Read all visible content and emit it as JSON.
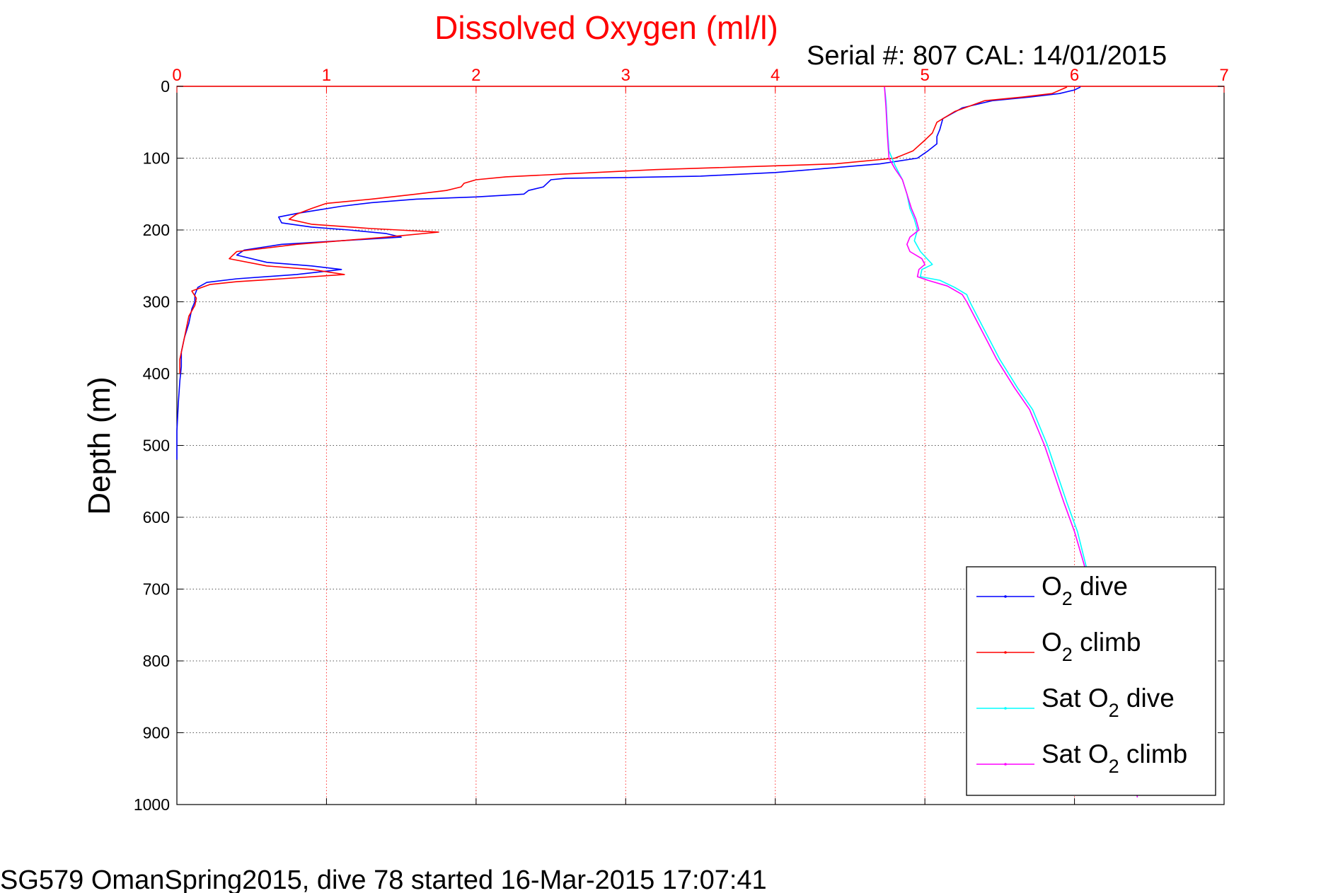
{
  "chart_data": {
    "type": "line",
    "title": "Dissolved Oxygen (ml/l)",
    "subtitle": "Serial #: 807  CAL: 14/01/2015",
    "ylabel": "Depth (m)",
    "footer": "SG579 OmanSpring2015, dive 78 started 16-Mar-2015 17:07:41",
    "xlim": [
      0,
      7
    ],
    "ylim": [
      0,
      1000
    ],
    "y_reversed": true,
    "x_axis_position": "top",
    "x_ticks": [
      0,
      1,
      2,
      3,
      4,
      5,
      6,
      7
    ],
    "y_ticks": [
      0,
      100,
      200,
      300,
      400,
      500,
      600,
      700,
      800,
      900,
      1000
    ],
    "grid": true,
    "legend_position": "bottom-right",
    "legend": {
      "o2_dive": [
        "O",
        "2",
        " dive"
      ],
      "o2_climb": [
        "O",
        "2",
        " climb"
      ],
      "sat_dive": [
        "Sat O",
        "2",
        " dive"
      ],
      "sat_climb": [
        "Sat O",
        "2",
        " climb"
      ]
    },
    "colors": {
      "title": "#ff0000",
      "o2_dive": "#0000ff",
      "o2_climb": "#ff0000",
      "sat_dive": "#00ffff",
      "sat_climb": "#ff00ff"
    },
    "series": [
      {
        "key": "o2_dive",
        "points": [
          [
            6.04,
            1
          ],
          [
            6.0,
            5
          ],
          [
            5.9,
            10
          ],
          [
            5.7,
            15
          ],
          [
            5.45,
            20
          ],
          [
            5.25,
            30
          ],
          [
            5.12,
            45
          ],
          [
            5.1,
            60
          ],
          [
            5.08,
            70
          ],
          [
            5.08,
            80
          ],
          [
            5.02,
            90
          ],
          [
            4.95,
            100
          ],
          [
            4.7,
            108
          ],
          [
            4.3,
            115
          ],
          [
            4.0,
            120
          ],
          [
            3.5,
            125
          ],
          [
            3.0,
            127
          ],
          [
            2.6,
            128
          ],
          [
            2.5,
            130
          ],
          [
            2.45,
            140
          ],
          [
            2.35,
            145
          ],
          [
            2.32,
            150
          ],
          [
            2.0,
            154
          ],
          [
            1.6,
            157
          ],
          [
            1.3,
            162
          ],
          [
            1.1,
            167
          ],
          [
            0.95,
            172
          ],
          [
            0.8,
            177
          ],
          [
            0.68,
            182
          ],
          [
            0.7,
            190
          ],
          [
            0.9,
            196
          ],
          [
            1.15,
            200
          ],
          [
            1.4,
            205
          ],
          [
            1.5,
            210
          ],
          [
            1.1,
            215
          ],
          [
            0.7,
            220
          ],
          [
            0.45,
            228
          ],
          [
            0.4,
            235
          ],
          [
            0.6,
            245
          ],
          [
            0.9,
            250
          ],
          [
            1.1,
            255
          ],
          [
            0.8,
            262
          ],
          [
            0.4,
            268
          ],
          [
            0.2,
            273
          ],
          [
            0.14,
            280
          ],
          [
            0.12,
            290
          ],
          [
            0.12,
            300
          ],
          [
            0.1,
            310
          ],
          [
            0.08,
            330
          ],
          [
            0.05,
            350
          ],
          [
            0.03,
            370
          ],
          [
            0.03,
            390
          ],
          [
            0.02,
            410
          ],
          [
            0.01,
            440
          ],
          [
            0.0,
            480
          ],
          [
            0.0,
            520
          ]
        ]
      },
      {
        "key": "o2_climb",
        "points": [
          [
            5.95,
            1
          ],
          [
            5.85,
            10
          ],
          [
            5.65,
            15
          ],
          [
            5.4,
            20
          ],
          [
            5.2,
            35
          ],
          [
            5.08,
            50
          ],
          [
            5.05,
            65
          ],
          [
            5.0,
            75
          ],
          [
            4.92,
            90
          ],
          [
            4.8,
            100
          ],
          [
            4.4,
            108
          ],
          [
            3.8,
            112
          ],
          [
            3.2,
            116
          ],
          [
            2.6,
            122
          ],
          [
            2.2,
            126
          ],
          [
            2.0,
            130
          ],
          [
            1.92,
            135
          ],
          [
            1.9,
            140
          ],
          [
            1.8,
            145
          ],
          [
            1.6,
            150
          ],
          [
            1.3,
            157
          ],
          [
            1.0,
            163
          ],
          [
            0.9,
            170
          ],
          [
            0.8,
            178
          ],
          [
            0.75,
            185
          ],
          [
            0.9,
            192
          ],
          [
            1.3,
            198
          ],
          [
            1.75,
            203
          ],
          [
            1.4,
            210
          ],
          [
            0.8,
            220
          ],
          [
            0.4,
            230
          ],
          [
            0.35,
            240
          ],
          [
            0.6,
            250
          ],
          [
            0.9,
            255
          ],
          [
            1.12,
            262
          ],
          [
            0.7,
            268
          ],
          [
            0.4,
            272
          ],
          [
            0.22,
            276
          ],
          [
            0.1,
            285
          ],
          [
            0.13,
            295
          ],
          [
            0.12,
            305
          ],
          [
            0.08,
            320
          ],
          [
            0.06,
            340
          ],
          [
            0.04,
            360
          ],
          [
            0.02,
            380
          ],
          [
            0.02,
            400
          ]
        ]
      },
      {
        "key": "sat_dive",
        "points": [
          [
            4.73,
            1
          ],
          [
            4.74,
            20
          ],
          [
            4.75,
            60
          ],
          [
            4.76,
            90
          ],
          [
            4.8,
            110
          ],
          [
            4.85,
            130
          ],
          [
            4.88,
            150
          ],
          [
            4.9,
            170
          ],
          [
            4.93,
            185
          ],
          [
            4.95,
            200
          ],
          [
            4.93,
            215
          ],
          [
            4.97,
            230
          ],
          [
            5.05,
            248
          ],
          [
            4.98,
            255
          ],
          [
            4.97,
            265
          ],
          [
            5.1,
            270
          ],
          [
            5.2,
            280
          ],
          [
            5.28,
            290
          ],
          [
            5.3,
            300
          ],
          [
            5.4,
            340
          ],
          [
            5.5,
            380
          ],
          [
            5.62,
            420
          ],
          [
            5.72,
            450
          ],
          [
            5.82,
            500
          ],
          [
            5.95,
            580
          ],
          [
            6.02,
            620
          ],
          [
            6.08,
            670
          ],
          [
            6.18,
            730
          ],
          [
            6.28,
            800
          ],
          [
            6.35,
            870
          ],
          [
            6.4,
            940
          ],
          [
            6.42,
            990
          ]
        ]
      },
      {
        "key": "sat_climb",
        "points": [
          [
            4.73,
            1
          ],
          [
            4.74,
            30
          ],
          [
            4.75,
            70
          ],
          [
            4.76,
            100
          ],
          [
            4.8,
            115
          ],
          [
            4.85,
            130
          ],
          [
            4.88,
            150
          ],
          [
            4.91,
            170
          ],
          [
            4.94,
            185
          ],
          [
            4.96,
            200
          ],
          [
            4.9,
            210
          ],
          [
            4.88,
            220
          ],
          [
            4.9,
            230
          ],
          [
            4.98,
            240
          ],
          [
            5.0,
            248
          ],
          [
            4.96,
            255
          ],
          [
            4.95,
            265
          ],
          [
            5.02,
            270
          ],
          [
            5.15,
            278
          ],
          [
            5.25,
            290
          ],
          [
            5.28,
            300
          ],
          [
            5.38,
            340
          ],
          [
            5.48,
            380
          ],
          [
            5.6,
            420
          ],
          [
            5.7,
            450
          ],
          [
            5.8,
            500
          ],
          [
            5.93,
            580
          ],
          [
            6.0,
            620
          ],
          [
            6.07,
            670
          ],
          [
            6.17,
            730
          ],
          [
            6.27,
            800
          ],
          [
            6.34,
            870
          ],
          [
            6.39,
            940
          ],
          [
            6.42,
            990
          ]
        ]
      }
    ]
  }
}
